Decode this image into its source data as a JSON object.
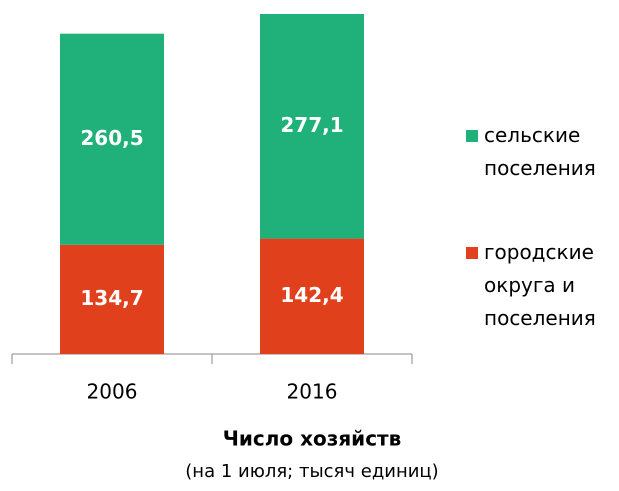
{
  "chart_data": {
    "type": "stacked_bar",
    "title": "Число хозяйств",
    "subtitle": "(на 1 июля; тысяч единиц)",
    "categories": [
      "2006",
      "2016"
    ],
    "series": [
      {
        "name": "городские округа и поселения",
        "color": "#e0401c",
        "values": [
          134.7,
          142.4
        ],
        "value_labels": [
          "134,7",
          "142,4"
        ]
      },
      {
        "name": "сельские поселения",
        "color": "#20b07a",
        "values": [
          260.5,
          277.1
        ],
        "value_labels": [
          "260,5",
          "277,1"
        ]
      }
    ],
    "legend": "right"
  }
}
